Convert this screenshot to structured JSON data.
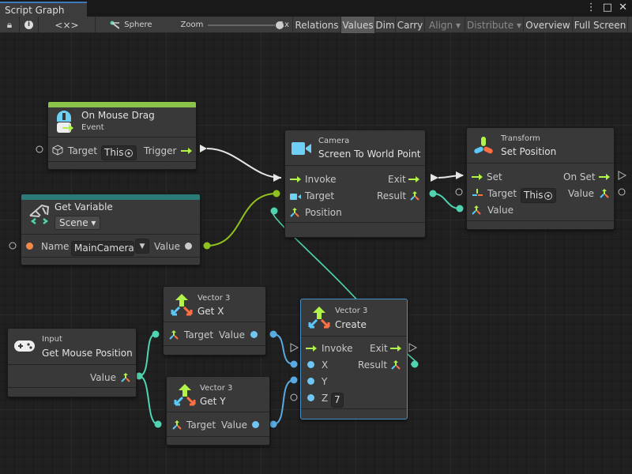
{
  "window": {
    "tab_title": "Script Graph",
    "more_label": "⋮",
    "maximize_label": "□",
    "close_label": "✕"
  },
  "toolbar": {
    "lock_icon": "lock-icon",
    "info_icon": "info-icon",
    "source_label": "<×>",
    "graph_object": "Sphere",
    "zoom_label": "Zoom",
    "zoom_value": "1x",
    "zoom_fraction": 1.0,
    "buttons": [
      {
        "label": "Relations",
        "active": false,
        "disabled": false
      },
      {
        "label": "Values",
        "active": true,
        "disabled": false
      },
      {
        "label": "Dim",
        "active": false,
        "disabled": false
      },
      {
        "label": "Carry",
        "active": false,
        "disabled": false
      },
      {
        "label": "Align ▾",
        "active": false,
        "disabled": true
      },
      {
        "label": "Distribute ▾",
        "active": false,
        "disabled": true
      },
      {
        "label": "Overview",
        "active": false,
        "disabled": false
      },
      {
        "label": "Full Screen",
        "active": false,
        "disabled": false
      }
    ]
  },
  "colors": {
    "event": "#8bc34a",
    "variable": "#2a7a78",
    "flow": "#b2f34a",
    "vector": "#4fd3b0",
    "object": "#8fc31f",
    "float": "#5aa9e0",
    "edge_flow": "#e6e6e6"
  },
  "nodes": {
    "on_mouse_drag": {
      "title": "On Mouse Drag",
      "subtitle": "Event",
      "icon": "mouse-event-icon",
      "target_label": "Target",
      "target_value": "This",
      "trigger_label": "Trigger"
    },
    "get_variable": {
      "title": "Get Variable",
      "kind": "Scene",
      "icon": "variable-icon",
      "name_label": "Name",
      "name_value": "MainCamera",
      "value_label": "Value"
    },
    "screen_to_world": {
      "category": "Camera",
      "title": "Screen To World Point",
      "icon": "camera-icon",
      "invoke": "Invoke",
      "exit": "Exit",
      "target": "Target",
      "result": "Result",
      "position": "Position"
    },
    "set_position": {
      "category": "Transform",
      "title": "Set Position",
      "icon": "transform-icon",
      "set": "Set",
      "on_set": "On Set",
      "target": "Target",
      "target_value": "This",
      "value_out": "Value",
      "value_in": "Value"
    },
    "get_mouse_position": {
      "category": "Input",
      "title": "Get Mouse Position",
      "icon": "gamepad-icon",
      "value": "Value"
    },
    "get_x": {
      "category": "Vector 3",
      "title": "Get X",
      "icon": "vector3-icon",
      "target": "Target",
      "value": "Value"
    },
    "get_y": {
      "category": "Vector 3",
      "title": "Get Y",
      "icon": "vector3-icon",
      "target": "Target",
      "value": "Value"
    },
    "create": {
      "category": "Vector 3",
      "title": "Create",
      "icon": "vector3-icon",
      "invoke": "Invoke",
      "exit": "Exit",
      "x": "X",
      "y": "Y",
      "z": "Z",
      "z_value": "7",
      "result": "Result"
    }
  }
}
